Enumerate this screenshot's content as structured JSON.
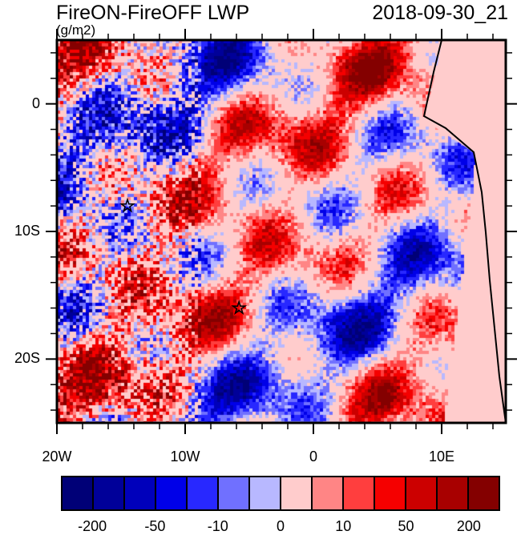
{
  "title": "FireON-FireOFF LWP",
  "units": "(g/m2)",
  "datetime": "2018-09-30_21",
  "map": {
    "lon_range": [
      -20,
      15
    ],
    "lat_range": [
      -25,
      5
    ],
    "lon_labels": [
      {
        "v": -20,
        "t": "20W"
      },
      {
        "v": -10,
        "t": "10W"
      },
      {
        "v": 0,
        "t": "0"
      },
      {
        "v": 10,
        "t": "10E"
      }
    ],
    "lat_labels": [
      {
        "v": 0,
        "t": "0"
      },
      {
        "v": -10,
        "t": "10S"
      },
      {
        "v": -20,
        "t": "20S"
      }
    ],
    "markers": [
      {
        "lon": -14.5,
        "lat": -8,
        "symbol": "star"
      },
      {
        "lon": -5.8,
        "lat": -16,
        "symbol": "star"
      }
    ]
  },
  "colorbar": {
    "colors": [
      "#000077",
      "#000099",
      "#0000bb",
      "#0000e8",
      "#2828ff",
      "#7070ff",
      "#b8b8ff",
      "#ffcccc",
      "#ff8585",
      "#ff3e3e",
      "#f50000",
      "#cc0000",
      "#a80000",
      "#840000"
    ],
    "labels": [
      {
        "i": 1,
        "t": "-200"
      },
      {
        "i": 3,
        "t": "-50"
      },
      {
        "i": 5,
        "t": "-10"
      },
      {
        "i": 7,
        "t": "0"
      },
      {
        "i": 9,
        "t": "10"
      },
      {
        "i": 11,
        "t": "50"
      },
      {
        "i": 13,
        "t": "200"
      }
    ]
  }
}
